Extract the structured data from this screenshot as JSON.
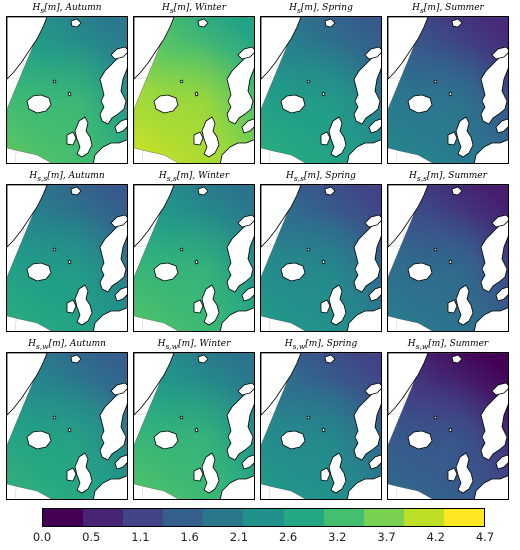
{
  "panels": [
    {
      "title": "H_s[m], Autumn",
      "title_html": "<i>H</i><sub><i>s</i></sub>[<i>m</i>], <i>Autumn</i>",
      "field_level": 0.62
    },
    {
      "title": "H_s[m], Winter",
      "title_html": "<i>H</i><sub><i>s</i></sub>[<i>m</i>], <i>Winter</i>",
      "field_level": 0.8
    },
    {
      "title": "H_s[m], Spring",
      "title_html": "<i>H</i><sub><i>s</i></sub>[<i>m</i>], <i>Spring</i>",
      "field_level": 0.5
    },
    {
      "title": "H_s[m], Summer",
      "title_html": "<i>H</i><sub><i>s</i></sub>[<i>m</i>], <i>Summer</i>",
      "field_level": 0.34
    },
    {
      "title": "H_s,s[m], Autumn",
      "title_html": "<i>H</i><sub><i>s,s</i></sub>[<i>m</i>], <i>Autumn</i>",
      "field_level": 0.5
    },
    {
      "title": "H_s,s[m], Winter",
      "title_html": "<i>H</i><sub><i>s,s</i></sub>[<i>m</i>], <i>Winter</i>",
      "field_level": 0.6
    },
    {
      "title": "H_s,s[m], Spring",
      "title_html": "<i>H</i><sub><i>s,s</i></sub>[<i>m</i>], <i>Spring</i>",
      "field_level": 0.42
    },
    {
      "title": "H_s,s[m], Summer",
      "title_html": "<i>H</i><sub><i>s,s</i></sub>[<i>m</i>], <i>Summer</i>",
      "field_level": 0.3
    },
    {
      "title": "H_s,w[m], Autumn",
      "title_html": "<i>H</i><sub><i>s,w</i></sub>[<i>m</i>], <i>Autumn</i>",
      "field_level": 0.52
    },
    {
      "title": "H_s,w[m], Winter",
      "title_html": "<i>H</i><sub><i>s,w</i></sub>[<i>m</i>], <i>Winter</i>",
      "field_level": 0.6
    },
    {
      "title": "H_s,w[m], Spring",
      "title_html": "<i>H</i><sub><i>s,w</i></sub>[<i>m</i>], <i>Spring</i>",
      "field_level": 0.42
    },
    {
      "title": "H_s,w[m], Summer",
      "title_html": "<i>H</i><sub><i>s,w</i></sub>[<i>m</i>], <i>Summer</i>",
      "field_level": 0.22
    }
  ],
  "colorbar": {
    "ticks": [
      "0.0",
      "0.5",
      "1.1",
      "1.6",
      "2.1",
      "2.6",
      "3.2",
      "3.7",
      "4.2",
      "4.7"
    ],
    "colors": [
      "#440154",
      "#482475",
      "#414487",
      "#355f8d",
      "#2a788e",
      "#21918c",
      "#22a884",
      "#44bf70",
      "#7ad151",
      "#bddf26",
      "#fde725"
    ]
  },
  "land_color": "#ffffff",
  "coast_color": "#000000"
}
